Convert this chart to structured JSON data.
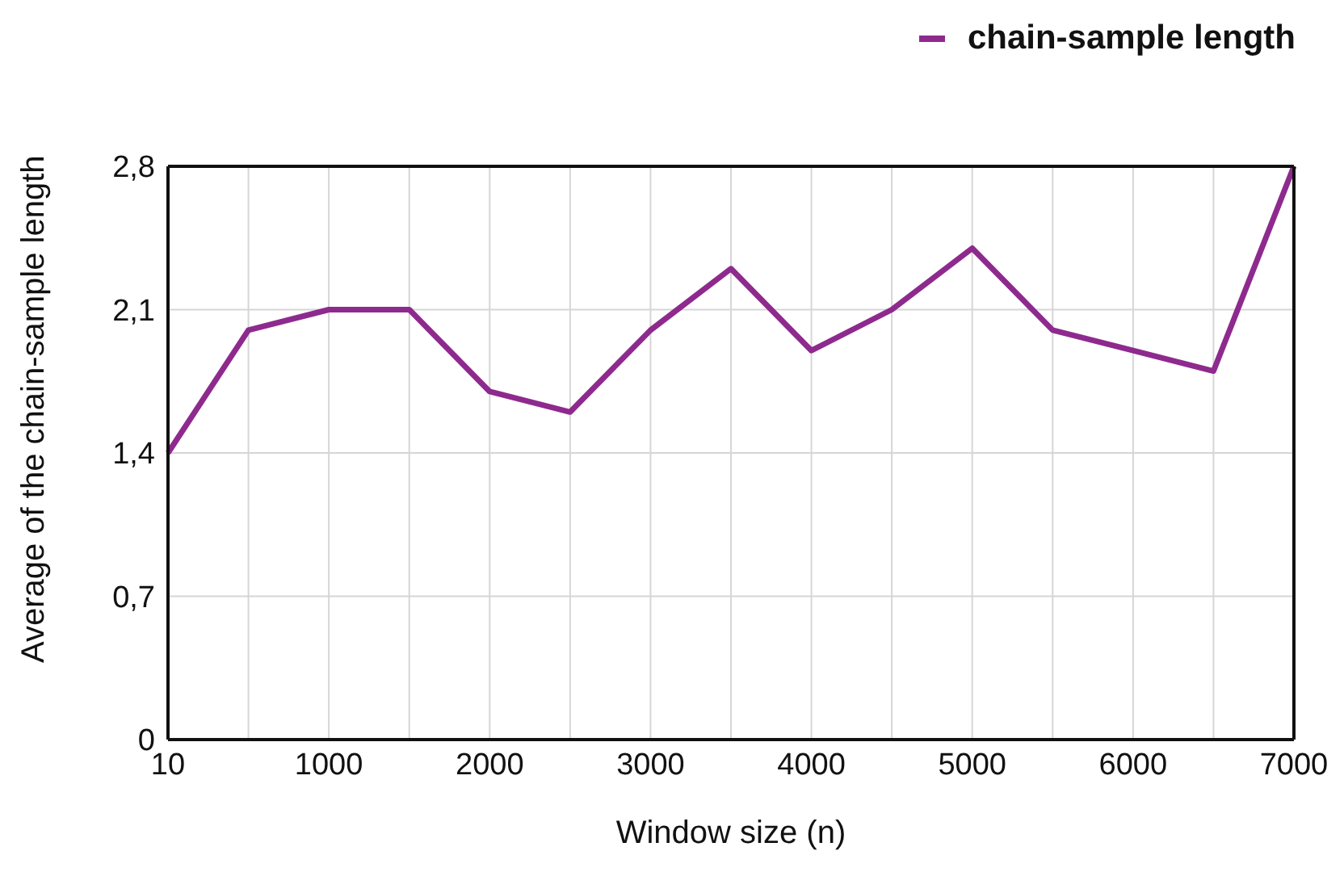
{
  "chart_data": {
    "type": "line",
    "xlabel": "Window size (n)",
    "ylabel": "Average of the chain-sample length",
    "categories": [
      "10",
      null,
      "1000",
      null,
      "2000",
      null,
      "3000",
      null,
      "4000",
      null,
      "5000",
      null,
      "6000",
      null,
      "7000"
    ],
    "series": [
      {
        "name": "chain-sample length",
        "color": "#8e2a8e",
        "values": [
          1.4,
          2.0,
          2.1,
          2.1,
          1.7,
          1.6,
          2.0,
          2.3,
          1.9,
          2.1,
          2.4,
          2.0,
          1.9,
          1.8,
          2.8
        ]
      }
    ],
    "ylim": [
      0,
      2.8
    ],
    "yticks": [
      0,
      {
        "value": 0.7,
        "label": "0,7"
      },
      {
        "value": 1.4,
        "label": "1,4"
      },
      {
        "value": 2.1,
        "label": "2,1"
      },
      {
        "value": 2.8,
        "label": "2,8"
      }
    ],
    "grid": true,
    "legend": "top right",
    "marker": "none",
    "line_style": "solid"
  }
}
